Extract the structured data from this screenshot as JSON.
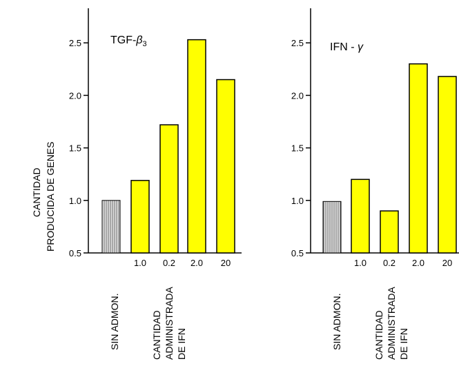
{
  "y_axis_label": [
    "CANTIDAD",
    "PRODUCIDA DE GENES"
  ],
  "chart_data": [
    {
      "type": "bar",
      "title": "TGF-β3",
      "title_main": "TGF-",
      "title_beta": "β",
      "title_sub": "3",
      "ylim": [
        0.5,
        2.8
      ],
      "yticks": [
        "0.5",
        "1.0",
        "1.5",
        "2.0",
        "2.5"
      ],
      "control": {
        "value": 1.0,
        "label": "SIN ADMON."
      },
      "categories": [
        "1.0",
        "0.2",
        "2.0",
        "20"
      ],
      "values": [
        1.19,
        1.72,
        2.53,
        2.15
      ],
      "xlabel": [
        "CANTIDAD",
        "ADMINISTRADA",
        "DE IFN"
      ],
      "colors": {
        "bar": "#ffff00",
        "control": "#c8c8c8"
      }
    },
    {
      "type": "bar",
      "title": "IFN - γ",
      "title_main": "IFN - ",
      "title_gamma": "γ",
      "ylim": [
        0.5,
        2.8
      ],
      "yticks": [
        "0.5",
        "1.0",
        "1.5",
        "2.0",
        "2.5"
      ],
      "control": {
        "value": 0.99,
        "label": "SIN ADMON."
      },
      "categories": [
        "1.0",
        "0.2",
        "2.0",
        "20"
      ],
      "values": [
        1.2,
        0.9,
        2.3,
        2.18
      ],
      "xlabel": [
        "CANTIDAD",
        "ADMINISTRADA",
        "DE IFN"
      ],
      "colors": {
        "bar": "#ffff00",
        "control": "#c8c8c8"
      }
    }
  ]
}
